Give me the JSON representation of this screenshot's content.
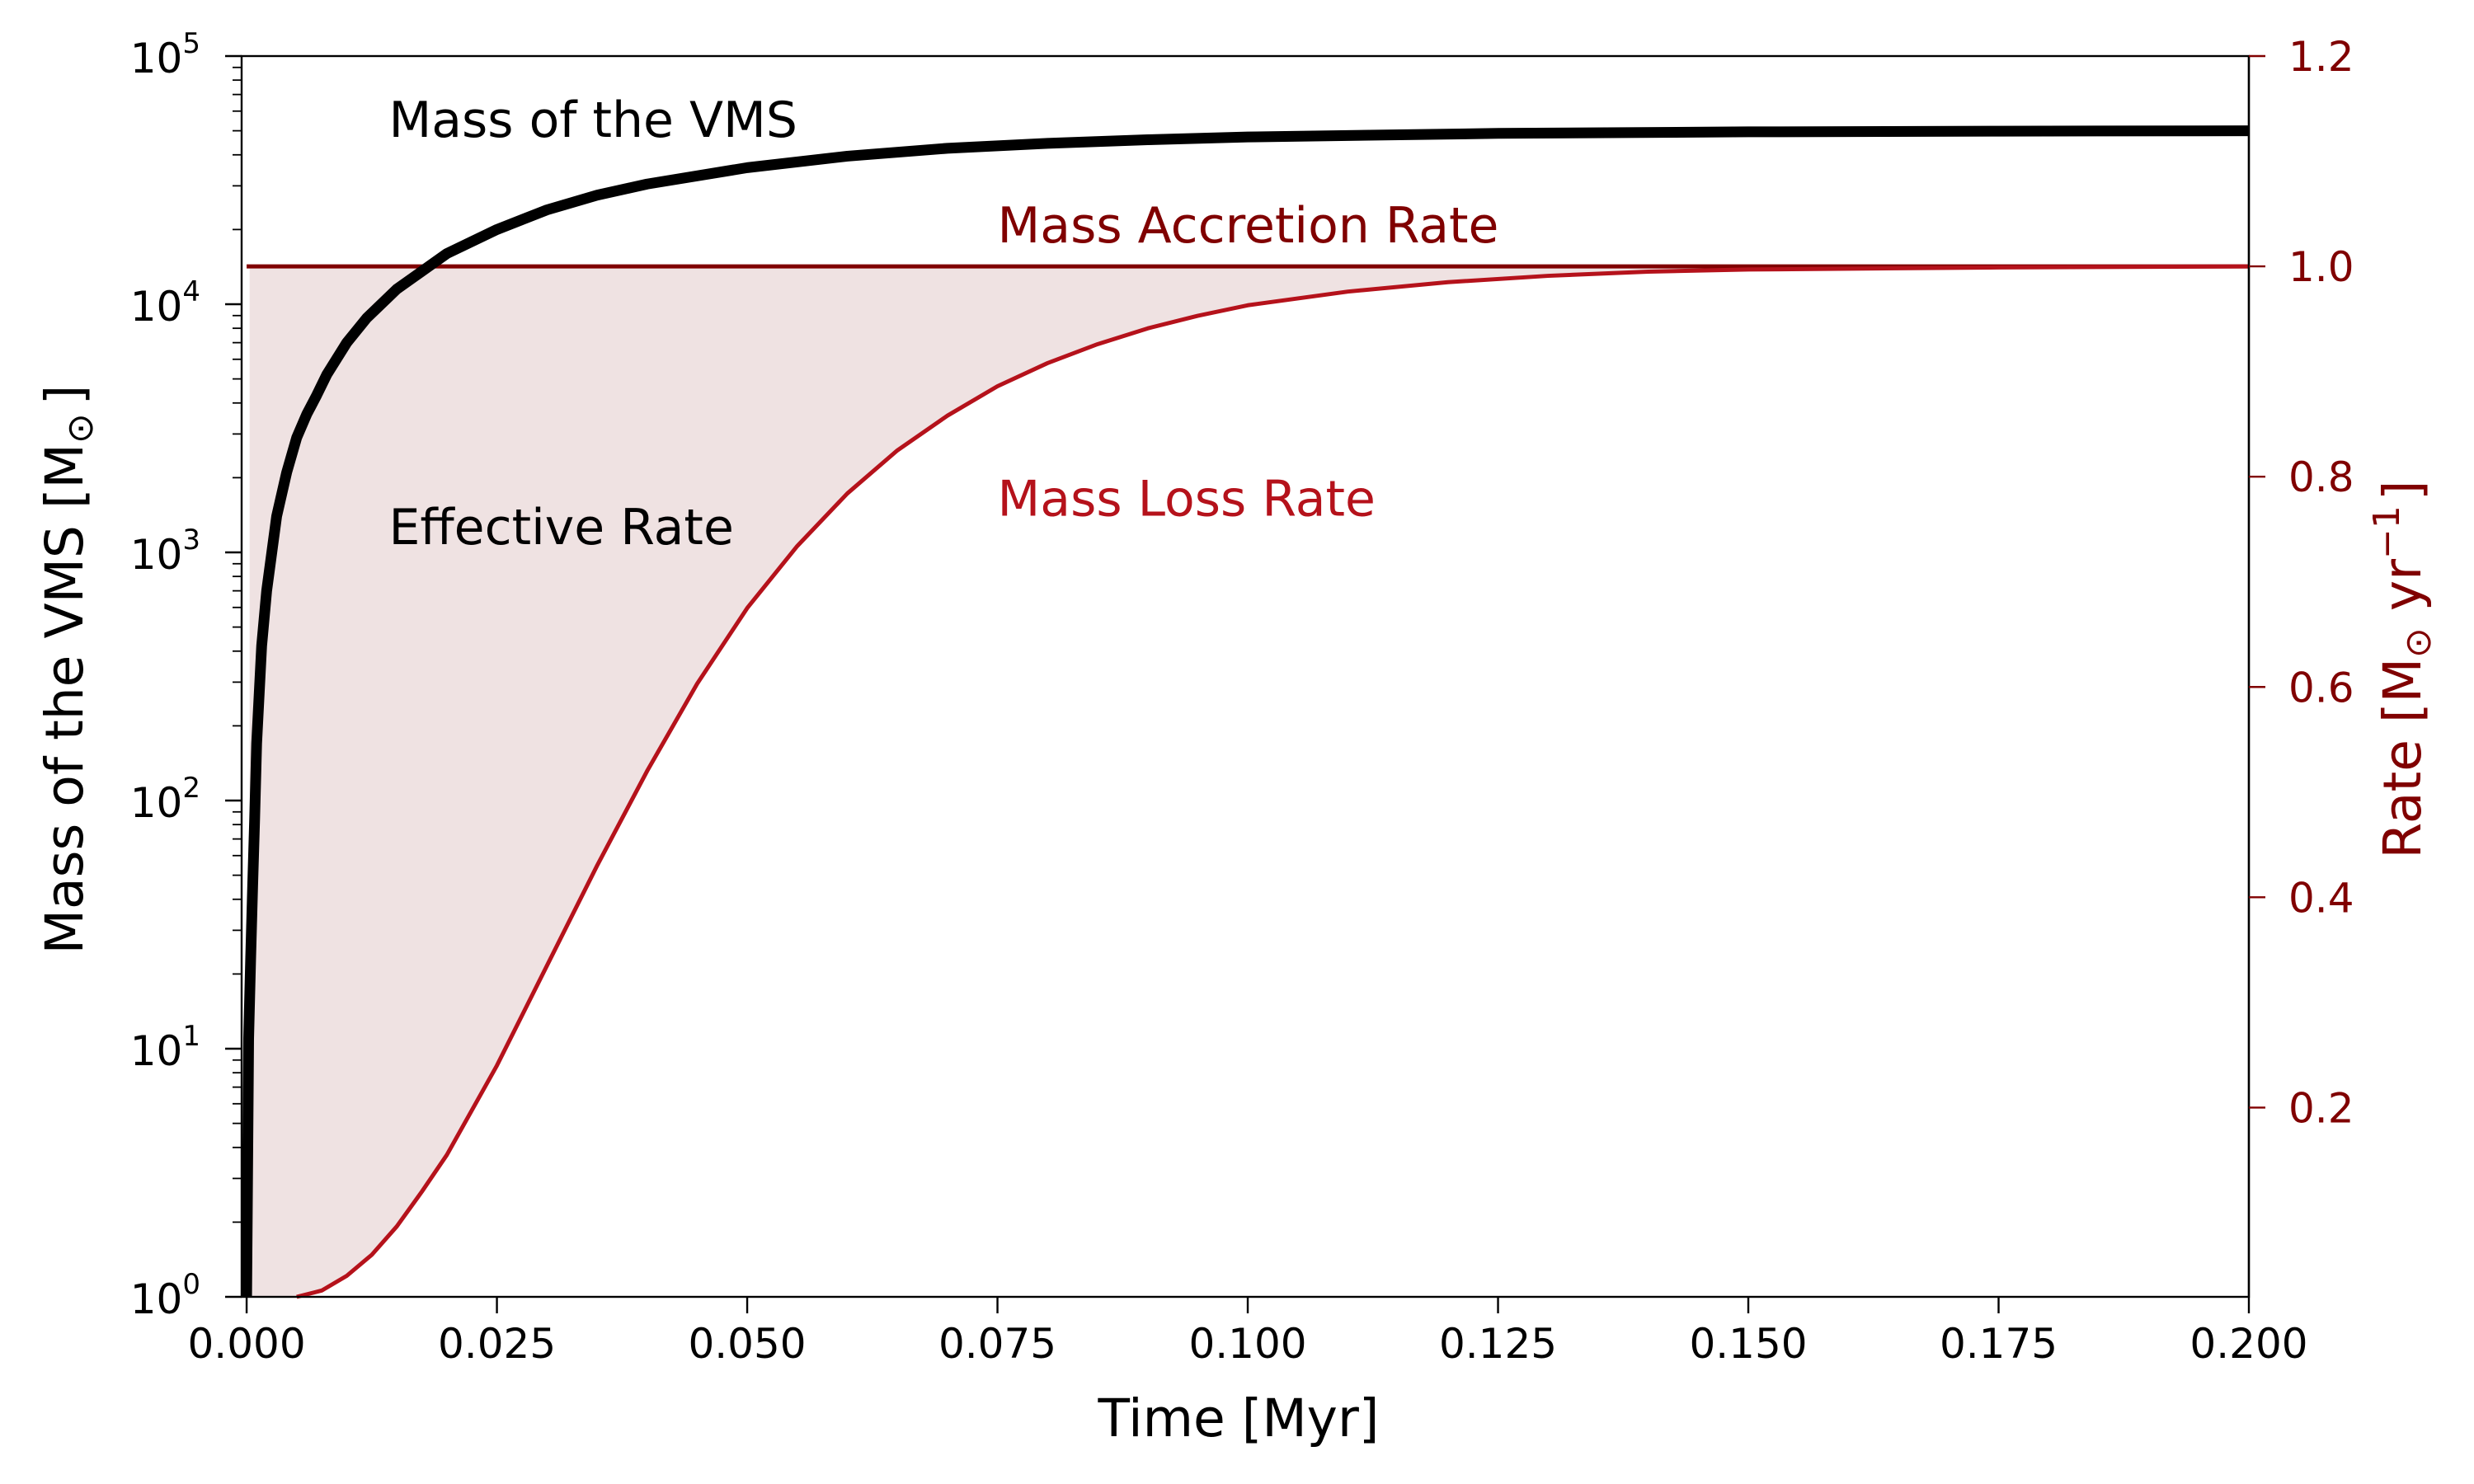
{
  "chart_data": {
    "type": "line",
    "title": "",
    "xlabel": "Time [Myr]",
    "x_ticks": [
      "0.000",
      "0.025",
      "0.050",
      "0.075",
      "0.100",
      "0.125",
      "0.150",
      "0.175",
      "0.200"
    ],
    "x_tick_values": [
      0,
      0.025,
      0.05,
      0.075,
      0.1,
      0.125,
      0.15,
      0.175,
      0.2
    ],
    "xlim": [
      -0.0005,
      0.2
    ],
    "y_left": {
      "label_main": "Mass of the VMS [M",
      "label_sub": "⊙",
      "label_end": "]",
      "scale": "log",
      "ylim": [
        1,
        100000
      ],
      "tick_exponents": [
        "0",
        "1",
        "2",
        "3",
        "4",
        "5"
      ],
      "tick_base": "10",
      "tick_values": [
        1,
        10,
        100,
        1000,
        10000,
        100000
      ]
    },
    "y_right": {
      "label_main": "Rate [M",
      "label_sub": "⊙",
      "label_mid": " yr",
      "label_sup": "−1",
      "label_end": "]",
      "ylim": [
        0.02,
        1.2
      ],
      "ticks": [
        "0.2",
        "0.4",
        "0.6",
        "0.8",
        "1.0",
        "1.2"
      ],
      "tick_values": [
        0.2,
        0.4,
        0.6,
        0.8,
        1.0,
        1.2
      ],
      "color": "#800000"
    },
    "series": [
      {
        "name": "Mass of the VMS",
        "axis": "left",
        "color": "#000000",
        "points": [
          [
            0.0,
            1
          ],
          [
            0.0002,
            11
          ],
          [
            0.0004,
            23
          ],
          [
            0.0006,
            45
          ],
          [
            0.0008,
            84
          ],
          [
            0.001,
            170
          ],
          [
            0.0015,
            420
          ],
          [
            0.002,
            700
          ],
          [
            0.003,
            1400
          ],
          [
            0.004,
            2100
          ],
          [
            0.005,
            2900
          ],
          [
            0.006,
            3600
          ],
          [
            0.007,
            4300
          ],
          [
            0.008,
            5200
          ],
          [
            0.01,
            7000
          ],
          [
            0.012,
            8800
          ],
          [
            0.015,
            11500
          ],
          [
            0.02,
            16000
          ],
          [
            0.025,
            20000
          ],
          [
            0.03,
            24000
          ],
          [
            0.035,
            27500
          ],
          [
            0.04,
            30500
          ],
          [
            0.05,
            35500
          ],
          [
            0.06,
            39500
          ],
          [
            0.07,
            42500
          ],
          [
            0.08,
            44500
          ],
          [
            0.09,
            46000
          ],
          [
            0.1,
            47200
          ],
          [
            0.125,
            48800
          ],
          [
            0.15,
            49500
          ],
          [
            0.175,
            49800
          ],
          [
            0.2,
            50000
          ]
        ]
      },
      {
        "name": "Mass Accretion Rate",
        "axis": "right",
        "color": "#800000",
        "points": [
          [
            0.0,
            1.0
          ],
          [
            0.2,
            1.0
          ]
        ]
      },
      {
        "name": "Mass Loss Rate",
        "axis": "right",
        "color": "#b5121b",
        "points": [
          [
            0.005,
            0.02
          ],
          [
            0.0075,
            0.026
          ],
          [
            0.01,
            0.04
          ],
          [
            0.0125,
            0.06
          ],
          [
            0.015,
            0.087
          ],
          [
            0.0175,
            0.12
          ],
          [
            0.02,
            0.155
          ],
          [
            0.025,
            0.24
          ],
          [
            0.03,
            0.335
          ],
          [
            0.035,
            0.43
          ],
          [
            0.04,
            0.52
          ],
          [
            0.045,
            0.603
          ],
          [
            0.05,
            0.675
          ],
          [
            0.055,
            0.734
          ],
          [
            0.06,
            0.784
          ],
          [
            0.065,
            0.825
          ],
          [
            0.07,
            0.858
          ],
          [
            0.075,
            0.886
          ],
          [
            0.08,
            0.908
          ],
          [
            0.085,
            0.926
          ],
          [
            0.09,
            0.941
          ],
          [
            0.095,
            0.953
          ],
          [
            0.1,
            0.963
          ],
          [
            0.11,
            0.976
          ],
          [
            0.12,
            0.985
          ],
          [
            0.13,
            0.991
          ],
          [
            0.14,
            0.995
          ],
          [
            0.15,
            0.997
          ],
          [
            0.175,
            0.999
          ],
          [
            0.2,
            1.0
          ]
        ]
      }
    ],
    "fill": {
      "name": "Effective Rate",
      "between": [
        "Mass Accretion Rate",
        "Mass Loss Rate"
      ],
      "color": "#efe2e2"
    },
    "annotations": [
      {
        "text": "Mass of the VMS",
        "x": 0.0142,
        "y": 1.123,
        "axis": "right",
        "color": "#000000"
      },
      {
        "text": "Mass Accretion Rate",
        "x": 0.075,
        "y": 1.023,
        "axis": "right",
        "color": "#800000"
      },
      {
        "text": "Mass Loss Rate",
        "x": 0.075,
        "y": 0.763,
        "axis": "right",
        "color": "#b5121b"
      },
      {
        "text": "Effective Rate",
        "x": 0.0142,
        "y": 0.736,
        "axis": "right",
        "color": "#000000"
      }
    ],
    "grid": false
  }
}
